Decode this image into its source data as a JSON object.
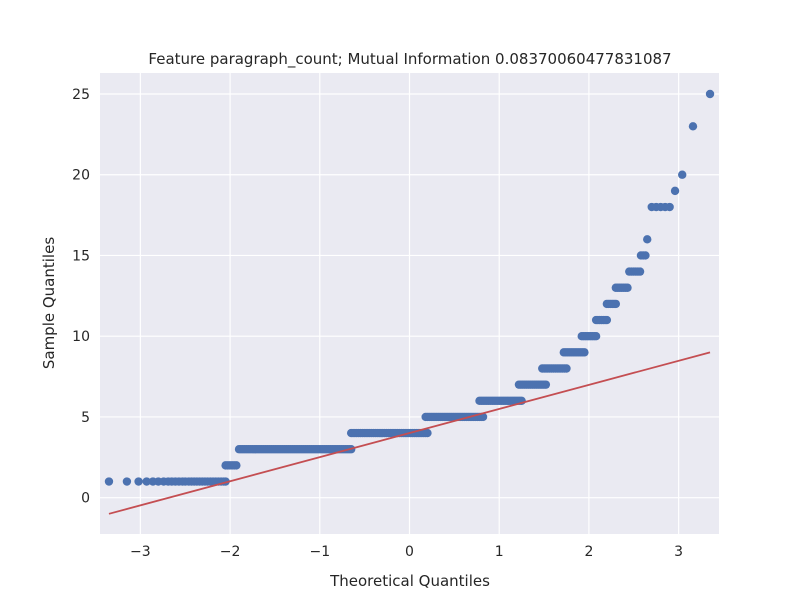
{
  "chart_data": {
    "type": "scatter",
    "title": "Feature paragraph_count; Mutual Information 0.08370060477831087",
    "xlabel": "Theoretical Quantiles",
    "ylabel": "Sample Quantiles",
    "xlim": [
      -3.45,
      3.45
    ],
    "ylim": [
      -2.25,
      26.3
    ],
    "xticks": [
      -3,
      -2,
      -1,
      0,
      1,
      2,
      3
    ],
    "xtick_labels": [
      "−3",
      "−2",
      "−1",
      "0",
      "1",
      "2",
      "3"
    ],
    "yticks": [
      0,
      5,
      10,
      15,
      20,
      25
    ],
    "ytick_labels": [
      "0",
      "5",
      "10",
      "15",
      "20",
      "25"
    ],
    "grid": true,
    "colors": {
      "background": "#eaeaf2",
      "grid": "#ffffff",
      "points": "#4c72b0",
      "line": "#c44e52"
    },
    "reference_line": {
      "name": "",
      "x": [
        -3.35,
        3.35
      ],
      "y": [
        -1.0,
        9.0
      ]
    },
    "point_groups": [
      {
        "y": 1,
        "x": [
          -3.35,
          -3.15,
          -3.02,
          -2.93,
          -2.86,
          -2.8,
          -2.74,
          -2.69,
          -2.65,
          -2.61,
          -2.57,
          -2.53,
          -2.5,
          -2.46,
          -2.43,
          -2.4,
          -2.37,
          -2.34,
          -2.31,
          -2.28,
          -2.25,
          -2.22,
          -2.19,
          -2.16,
          -2.13,
          -2.1,
          -2.07,
          -2.05
        ]
      },
      {
        "y": 2,
        "x_range": [
          -2.05,
          -1.93
        ],
        "count": 6
      },
      {
        "y": 3,
        "x_range": [
          -1.9,
          -0.65
        ],
        "count": 60
      },
      {
        "y": 4,
        "x_range": [
          -0.65,
          0.2
        ],
        "count": 42
      },
      {
        "y": 5,
        "x_range": [
          0.18,
          0.82
        ],
        "count": 32
      },
      {
        "y": 6,
        "x_range": [
          0.78,
          1.25
        ],
        "count": 24
      },
      {
        "y": 7,
        "x_range": [
          1.22,
          1.52
        ],
        "count": 15
      },
      {
        "y": 8,
        "x_range": [
          1.48,
          1.75
        ],
        "count": 14
      },
      {
        "y": 9,
        "x_range": [
          1.72,
          1.95
        ],
        "count": 12
      },
      {
        "y": 10,
        "x_range": [
          1.92,
          2.08
        ],
        "count": 9
      },
      {
        "y": 11,
        "x_range": [
          2.08,
          2.2
        ],
        "count": 7
      },
      {
        "y": 12,
        "x_range": [
          2.2,
          2.3
        ],
        "count": 6
      },
      {
        "y": 13,
        "x_range": [
          2.3,
          2.43
        ],
        "count": 7
      },
      {
        "y": 14,
        "x_range": [
          2.45,
          2.57
        ],
        "count": 6
      },
      {
        "y": 15,
        "x_range": [
          2.58,
          2.63
        ],
        "count": 3
      },
      {
        "y": 16,
        "x": [
          2.65
        ]
      },
      {
        "y": 18,
        "x": [
          2.7,
          2.75,
          2.8,
          2.85,
          2.9
        ]
      },
      {
        "y": 19,
        "x": [
          2.96
        ]
      },
      {
        "y": 20,
        "x": [
          3.04
        ]
      },
      {
        "y": 23,
        "x": [
          3.16
        ]
      },
      {
        "y": 25,
        "x": [
          3.35
        ]
      }
    ]
  }
}
